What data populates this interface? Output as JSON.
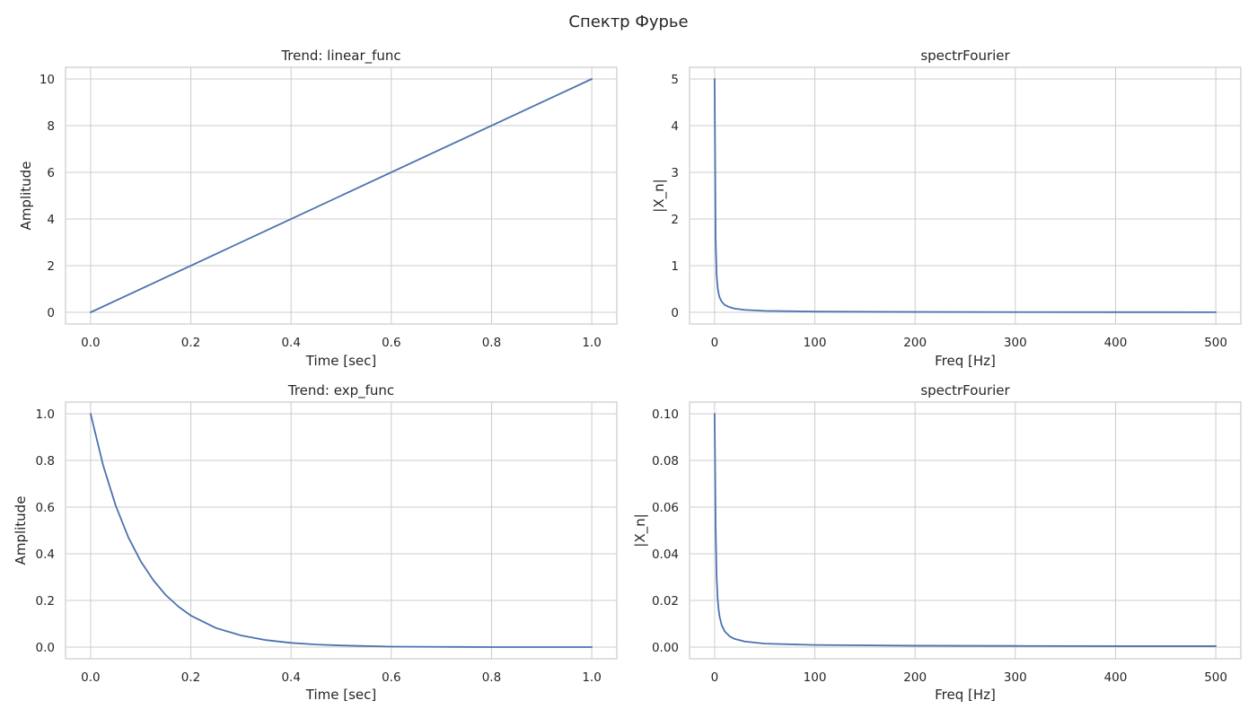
{
  "figure": {
    "title": "Спектр Фурье",
    "line_color": "#4c72b0",
    "grid_color": "#cccccc",
    "text_color": "#262626"
  },
  "chart_data": [
    {
      "type": "line",
      "title": "Trend: linear_func",
      "xlabel": "Time [sec]",
      "ylabel": "Amplitude",
      "xlim": [
        -0.05,
        1.05
      ],
      "ylim": [
        -0.5,
        10.5
      ],
      "xticks": [
        0.0,
        0.2,
        0.4,
        0.6,
        0.8,
        1.0
      ],
      "xtick_labels": [
        "0.0",
        "0.2",
        "0.4",
        "0.6",
        "0.8",
        "1.0"
      ],
      "yticks": [
        0,
        2,
        4,
        6,
        8,
        10
      ],
      "ytick_labels": [
        "0",
        "2",
        "4",
        "6",
        "8",
        "10"
      ],
      "grid": true,
      "series": [
        {
          "x": [
            0.0,
            1.0
          ],
          "y": [
            0,
            10
          ]
        }
      ]
    },
    {
      "type": "line",
      "title": "spectrFourier",
      "xlabel": "Freq [Hz]",
      "ylabel": "|X_n|",
      "xlim": [
        -25,
        525
      ],
      "ylim": [
        -0.25,
        5.25
      ],
      "xticks": [
        0,
        100,
        200,
        300,
        400,
        500
      ],
      "xtick_labels": [
        "0",
        "100",
        "200",
        "300",
        "400",
        "500"
      ],
      "yticks": [
        0,
        1,
        2,
        3,
        4,
        5
      ],
      "ytick_labels": [
        "0",
        "1",
        "2",
        "3",
        "4",
        "5"
      ],
      "grid": true,
      "series": [
        {
          "x": [
            0,
            1,
            2,
            3,
            4,
            5,
            7,
            10,
            15,
            20,
            30,
            50,
            100,
            200,
            300,
            400,
            500
          ],
          "y": [
            5.0,
            1.6,
            0.8,
            0.53,
            0.4,
            0.32,
            0.23,
            0.16,
            0.11,
            0.08,
            0.053,
            0.032,
            0.016,
            0.008,
            0.005,
            0.004,
            0.003
          ]
        }
      ]
    },
    {
      "type": "line",
      "title": "Trend: exp_func",
      "xlabel": "Time [sec]",
      "ylabel": "Amplitude",
      "xlim": [
        -0.05,
        1.05
      ],
      "ylim": [
        -0.05,
        1.05
      ],
      "xticks": [
        0.0,
        0.2,
        0.4,
        0.6,
        0.8,
        1.0
      ],
      "xtick_labels": [
        "0.0",
        "0.2",
        "0.4",
        "0.6",
        "0.8",
        "1.0"
      ],
      "yticks": [
        0.0,
        0.2,
        0.4,
        0.6,
        0.8,
        1.0
      ],
      "ytick_labels": [
        "0.0",
        "0.2",
        "0.4",
        "0.6",
        "0.8",
        "1.0"
      ],
      "grid": true,
      "series": [
        {
          "x": [
            0.0,
            0.025,
            0.05,
            0.075,
            0.1,
            0.125,
            0.15,
            0.175,
            0.2,
            0.25,
            0.3,
            0.35,
            0.4,
            0.45,
            0.5,
            0.6,
            0.7,
            0.8,
            0.9,
            1.0
          ],
          "y": [
            1.0,
            0.779,
            0.607,
            0.472,
            0.368,
            0.287,
            0.223,
            0.174,
            0.135,
            0.082,
            0.05,
            0.03,
            0.018,
            0.011,
            0.007,
            0.002,
            0.001,
            0.0,
            0.0,
            0.0
          ]
        }
      ]
    },
    {
      "type": "line",
      "title": "spectrFourier",
      "xlabel": "Freq [Hz]",
      "ylabel": "|X_n|",
      "xlim": [
        -25,
        525
      ],
      "ylim": [
        -0.005,
        0.105
      ],
      "xticks": [
        0,
        100,
        200,
        300,
        400,
        500
      ],
      "xtick_labels": [
        "0",
        "100",
        "200",
        "300",
        "400",
        "500"
      ],
      "yticks": [
        0.0,
        0.02,
        0.04,
        0.06,
        0.08,
        0.1
      ],
      "ytick_labels": [
        "0.00",
        "0.02",
        "0.04",
        "0.06",
        "0.08",
        "0.10"
      ],
      "grid": true,
      "series": [
        {
          "x": [
            0,
            1,
            2,
            3,
            4,
            5,
            7,
            10,
            15,
            20,
            30,
            50,
            100,
            200,
            300,
            400,
            500
          ],
          "y": [
            0.1,
            0.052,
            0.03,
            0.021,
            0.016,
            0.013,
            0.0095,
            0.0068,
            0.0046,
            0.0035,
            0.0024,
            0.0015,
            0.0009,
            0.0006,
            0.0005,
            0.0004,
            0.0004
          ]
        }
      ]
    }
  ]
}
